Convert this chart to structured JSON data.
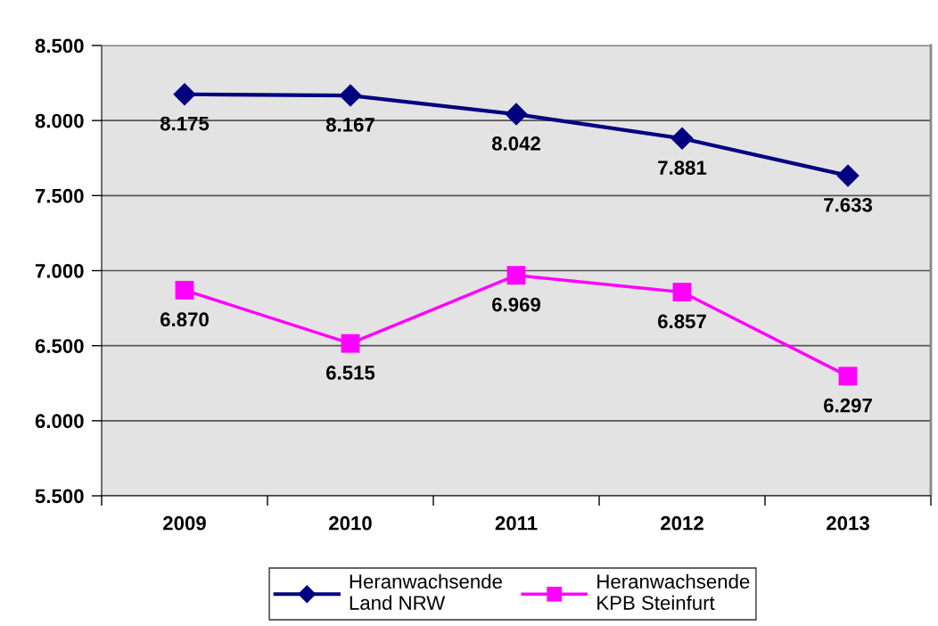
{
  "chart_data": {
    "type": "line",
    "categories": [
      "2009",
      "2010",
      "2011",
      "2012",
      "2013"
    ],
    "series": [
      {
        "name": "Heranwachsende\nLand NRW",
        "color": "#000080",
        "marker": "diamond",
        "values": [
          8175,
          8167,
          8042,
          7881,
          7633
        ],
        "value_labels": [
          "8.175",
          "8.167",
          "8.042",
          "7.881",
          "7.633"
        ]
      },
      {
        "name": "Heranwachsende\nKPB Steinfurt",
        "color": "#ff00ff",
        "marker": "square",
        "values": [
          6870,
          6515,
          6969,
          6857,
          6297
        ],
        "value_labels": [
          "6.870",
          "6.515",
          "6.969",
          "6.857",
          "6.297"
        ]
      }
    ],
    "ylim": [
      5500,
      8500
    ],
    "yticks": [
      {
        "value": 5500,
        "label": "5.500"
      },
      {
        "value": 6000,
        "label": "6.000"
      },
      {
        "value": 6500,
        "label": "6.500"
      },
      {
        "value": 7000,
        "label": "7.000"
      },
      {
        "value": 7500,
        "label": "7.500"
      },
      {
        "value": 8000,
        "label": "8.000"
      },
      {
        "value": 8500,
        "label": "8.500"
      }
    ],
    "grid": "y",
    "legend": "bottom",
    "line_style": "solid"
  }
}
